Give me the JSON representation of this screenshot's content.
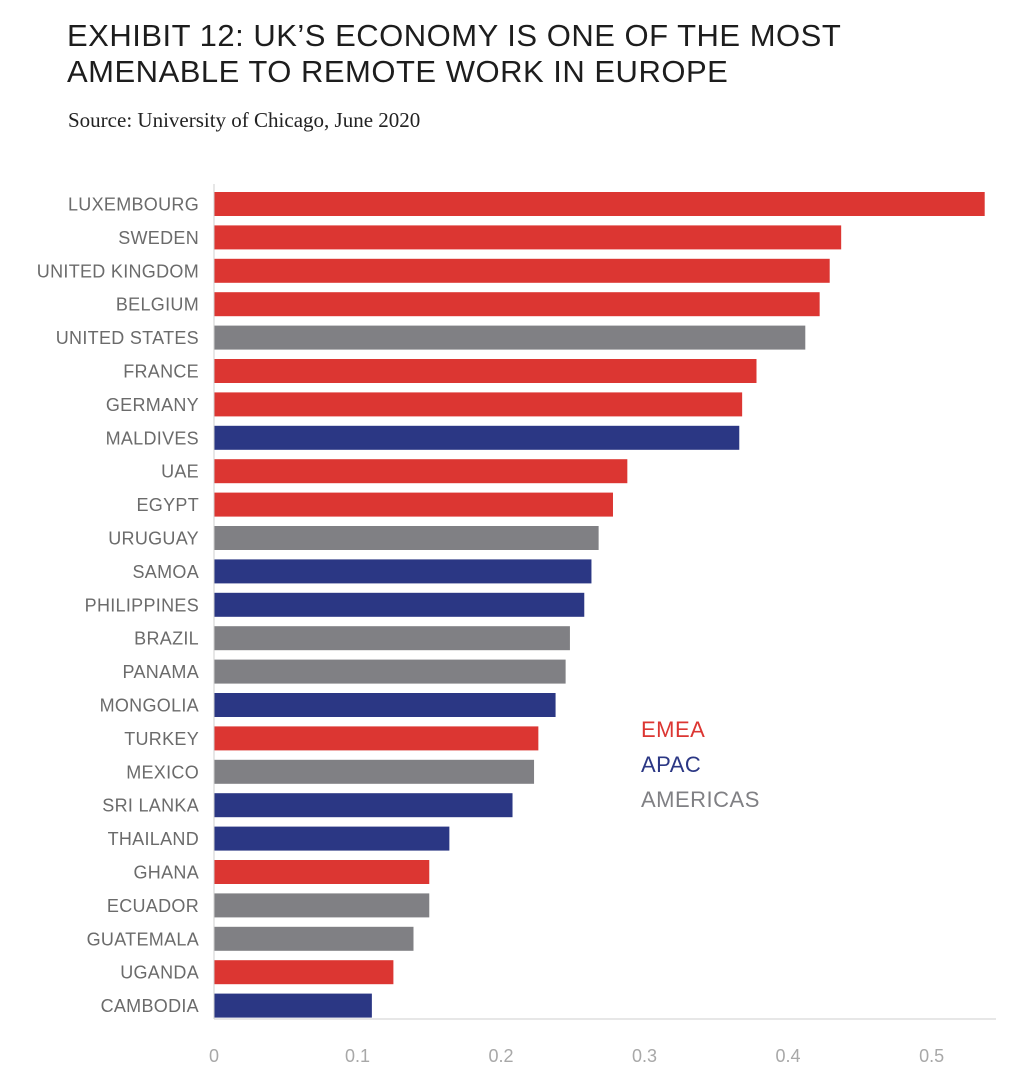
{
  "header": {
    "title_line1": "EXHIBIT 12: UK’S ECONOMY IS ONE OF THE MOST",
    "title_line2": "AMENABLE TO REMOTE WORK IN EUROPE",
    "subtitle": "Source: University of Chicago, June 2020"
  },
  "colors": {
    "EMEA": "#dc3632",
    "APAC": "#2b3784",
    "AMERICAS": "#808084",
    "axis": "#cfcfcf"
  },
  "chart_data": {
    "type": "bar",
    "orientation": "horizontal",
    "title": "EXHIBIT 12: UK’S ECONOMY IS ONE OF THE MOST AMENABLE TO REMOTE WORK IN EUROPE",
    "subtitle": "Source: University of Chicago, June 2020",
    "xlabel": "",
    "ylabel": "",
    "xlim": [
      0,
      0.54
    ],
    "xticks": [
      0,
      0.1,
      0.2,
      0.3,
      0.4,
      0.5
    ],
    "xtick_labels": [
      "0",
      "0.1",
      "0.2",
      "0.3",
      "0.4",
      "0.5"
    ],
    "grid": false,
    "legend_position": "center-right",
    "legend": [
      "EMEA",
      "APAC",
      "AMERICAS"
    ],
    "categories": [
      "LUXEMBOURG",
      "SWEDEN",
      "UNITED KINGDOM",
      "BELGIUM",
      "UNITED STATES",
      "FRANCE",
      "GERMANY",
      "MALDIVES",
      "UAE",
      "EGYPT",
      "URUGUAY",
      "SAMOA",
      "PHILIPPINES",
      "BRAZIL",
      "PANAMA",
      "MONGOLIA",
      "TURKEY",
      "MEXICO",
      "SRI LANKA",
      "THAILAND",
      "GHANA",
      "ECUADOR",
      "GUATEMALA",
      "UGANDA",
      "CAMBODIA"
    ],
    "values": [
      0.537,
      0.437,
      0.429,
      0.422,
      0.412,
      0.378,
      0.368,
      0.366,
      0.288,
      0.278,
      0.268,
      0.263,
      0.258,
      0.248,
      0.245,
      0.238,
      0.226,
      0.223,
      0.208,
      0.164,
      0.15,
      0.15,
      0.139,
      0.125,
      0.11
    ],
    "regions": [
      "EMEA",
      "EMEA",
      "EMEA",
      "EMEA",
      "AMERICAS",
      "EMEA",
      "EMEA",
      "APAC",
      "EMEA",
      "EMEA",
      "AMERICAS",
      "APAC",
      "APAC",
      "AMERICAS",
      "AMERICAS",
      "APAC",
      "EMEA",
      "AMERICAS",
      "APAC",
      "APAC",
      "EMEA",
      "AMERICAS",
      "AMERICAS",
      "EMEA",
      "APAC"
    ]
  }
}
